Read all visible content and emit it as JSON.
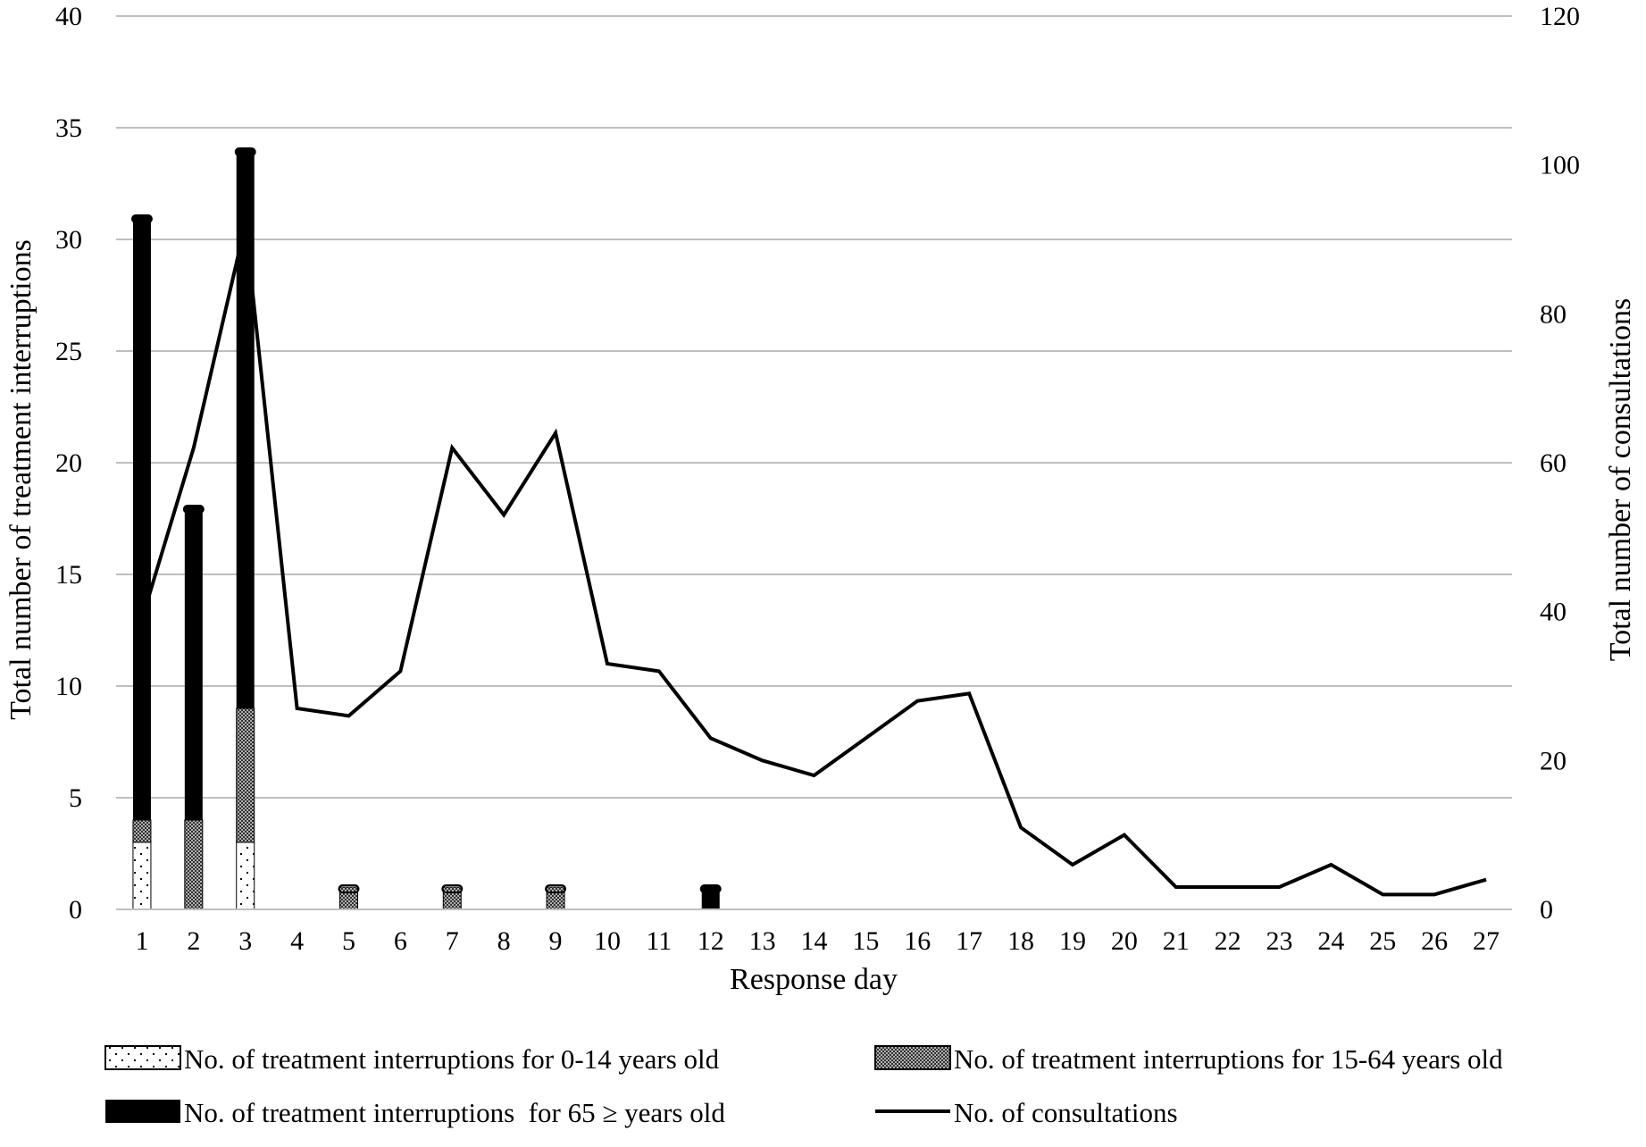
{
  "chart_data": {
    "type": "bar",
    "xlabel": "Response day",
    "ylabel_left": "Total number of treatment interruptions",
    "ylabel_right": "Total number of consultations",
    "ylim_left": [
      0,
      40
    ],
    "ylim_right": [
      0,
      120
    ],
    "yticks_left": [
      "0",
      "5",
      "10",
      "15",
      "20",
      "25",
      "30",
      "35",
      "40"
    ],
    "yticks_right": [
      "0",
      "20",
      "40",
      "60",
      "80",
      "100",
      "120"
    ],
    "grid": true,
    "legend_position": "bottom",
    "categories": [
      "1",
      "2",
      "3",
      "4",
      "5",
      "6",
      "7",
      "8",
      "9",
      "10",
      "11",
      "12",
      "13",
      "14",
      "15",
      "16",
      "17",
      "18",
      "19",
      "20",
      "21",
      "22",
      "23",
      "24",
      "25",
      "26",
      "27"
    ],
    "series": [
      {
        "name": "No. of treatment interruptions for 0-14 years old",
        "kind": "stacked-bar",
        "axis": "left",
        "pattern": "sparse-dots",
        "values": [
          3,
          0,
          3,
          0,
          0,
          0,
          0,
          0,
          0,
          0,
          0,
          0,
          0,
          0,
          0,
          0,
          0,
          0,
          0,
          0,
          0,
          0,
          0,
          0,
          0,
          0,
          0
        ]
      },
      {
        "name": "No. of treatment interruptions for 15-64 years old",
        "kind": "stacked-bar",
        "axis": "left",
        "pattern": "dense-dots",
        "values": [
          1,
          4,
          6,
          0,
          1,
          0,
          1,
          0,
          1,
          0,
          0,
          0,
          0,
          0,
          0,
          0,
          0,
          0,
          0,
          0,
          0,
          0,
          0,
          0,
          0,
          0,
          0
        ]
      },
      {
        "name": "No. of treatment interruptions  for 65 ≥ years old",
        "kind": "stacked-bar",
        "axis": "left",
        "pattern": "solid-black",
        "values": [
          27,
          14,
          25,
          0,
          0,
          0,
          0,
          0,
          0,
          0,
          0,
          1,
          0,
          0,
          0,
          0,
          0,
          0,
          0,
          0,
          0,
          0,
          0,
          0,
          0,
          0,
          0
        ]
      },
      {
        "name": "No. of consultations",
        "kind": "line",
        "axis": "right",
        "values": [
          39,
          62,
          92,
          27,
          26,
          32,
          62,
          53,
          64,
          33,
          32,
          23,
          20,
          18,
          23,
          28,
          29,
          11,
          6,
          10,
          3,
          3,
          3,
          6,
          2,
          2,
          4
        ]
      }
    ],
    "colors": {
      "solid": "#000000",
      "grid": "#bfbfbf",
      "pattern_fill": "#ffffff",
      "dense_fill": "#8c8c8c"
    }
  }
}
